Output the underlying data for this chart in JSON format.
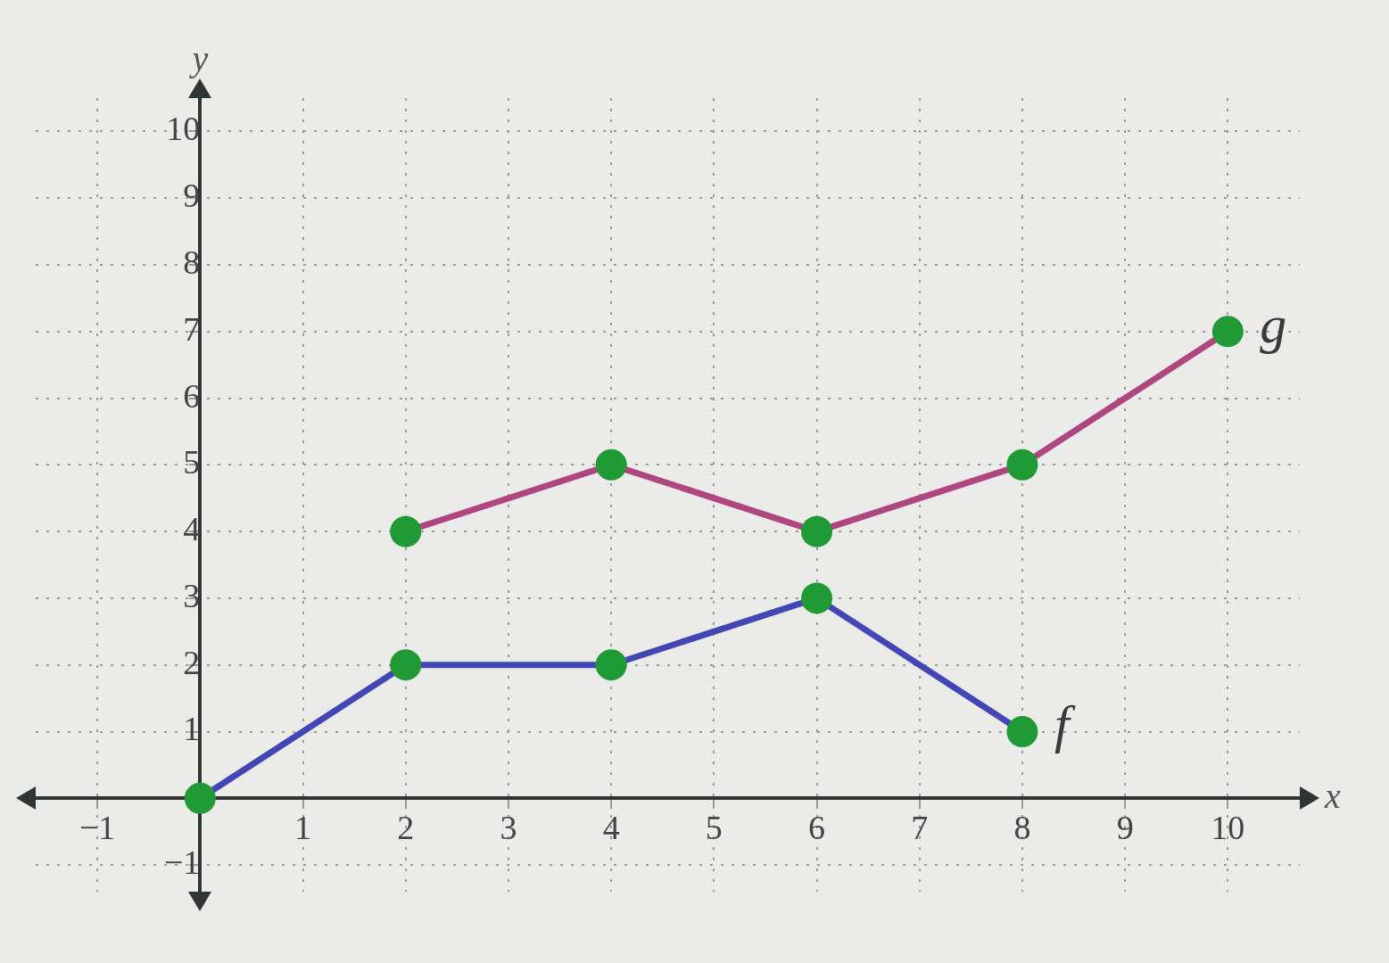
{
  "chart_data": {
    "type": "line",
    "xlabel": "x",
    "ylabel": "y",
    "xlim": [
      -1.6,
      10.7
    ],
    "ylim": [
      -1.4,
      10.5
    ],
    "xticks": [
      {
        "value": -1,
        "label": "−1"
      },
      {
        "value": 0,
        "label": null
      },
      1,
      2,
      3,
      4,
      5,
      6,
      7,
      8,
      9,
      10
    ],
    "yticks": [
      {
        "value": -1,
        "label": "−1"
      },
      {
        "value": 0,
        "label": null
      },
      1,
      2,
      3,
      4,
      5,
      6,
      7,
      8,
      9,
      10
    ],
    "grid": true,
    "marker": "circle",
    "line_style": "solid",
    "legend": false,
    "series": [
      {
        "name": "f",
        "color": "#4347b5",
        "colors": [
          "#1f9a35",
          "#1f9a35",
          "#1f9a35",
          "#1f9a35",
          "#1f9a35"
        ],
        "x": [
          0,
          2,
          4,
          6,
          8
        ],
        "values": [
          0,
          2,
          2,
          3,
          1
        ]
      },
      {
        "name": "g",
        "color": "#b04680",
        "colors": [
          "#1f9a35",
          "#1f9a35",
          "#1f9a35",
          "#1f9a35",
          "#1f9a35"
        ],
        "x": [
          2,
          4,
          6,
          8,
          10
        ],
        "values": [
          4,
          5,
          4,
          5,
          7
        ]
      }
    ]
  }
}
